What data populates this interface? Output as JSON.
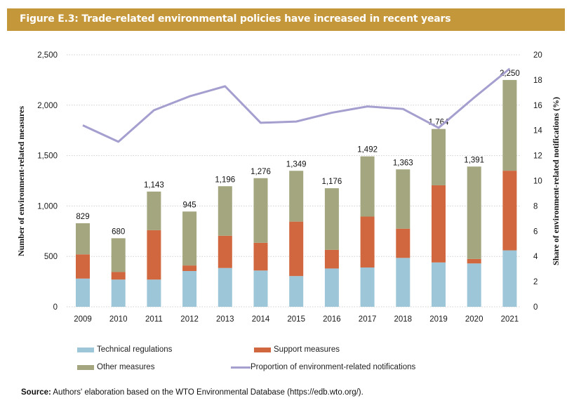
{
  "title": "Figure E.3: Trade-related environmental policies have increased in recent years",
  "source_label": "Source:",
  "source_text": " Authors' elaboration based on the WTO Environmental Database (https://edb.wto.org/).",
  "colors": {
    "technical": "#9dc6d8",
    "support": "#d0673e",
    "other": "#a3a67e",
    "line": "#a49fcf",
    "title_bg": "#c4973a"
  },
  "chart_data": {
    "type": "bar",
    "stacked": true,
    "title": "Figure E.3: Trade-related environmental policies have increased in recent years",
    "xlabel": "",
    "ylabel": "Number of environment-related measures",
    "y2label": "Share of environment-related notifications (%)",
    "ylim": [
      0,
      2500
    ],
    "y2lim": [
      0,
      20
    ],
    "yticks": [
      "0",
      "500",
      "1,000",
      "1,500",
      "2,000",
      "2,500"
    ],
    "y2ticks": [
      "0",
      "2",
      "4",
      "6",
      "8",
      "10",
      "12",
      "14",
      "16",
      "18",
      "20"
    ],
    "grid": true,
    "legend_position": "bottom",
    "categories": [
      "2009",
      "2010",
      "2011",
      "2012",
      "2013",
      "2014",
      "2015",
      "2016",
      "2017",
      "2018",
      "2019",
      "2020",
      "2021"
    ],
    "series": [
      {
        "name": "Technical regulations",
        "type": "bar",
        "values": [
          280,
          270,
          270,
          355,
          385,
          360,
          305,
          380,
          390,
          485,
          440,
          430,
          560
        ]
      },
      {
        "name": "Support measures",
        "type": "bar",
        "values": [
          240,
          75,
          490,
          55,
          320,
          275,
          540,
          185,
          505,
          290,
          765,
          45,
          790
        ]
      },
      {
        "name": "Other measures",
        "type": "bar",
        "values": [
          309,
          335,
          383,
          535,
          491,
          641,
          504,
          611,
          597,
          588,
          559,
          916,
          900
        ]
      },
      {
        "name": "Proportion of environment-related notifications",
        "type": "line",
        "axis": "right",
        "values": [
          14.4,
          13.1,
          15.6,
          16.7,
          17.5,
          14.6,
          14.7,
          15.4,
          15.9,
          15.7,
          14.2,
          16.6,
          18.9
        ]
      }
    ],
    "totals": [
      829,
      680,
      1143,
      945,
      1196,
      1276,
      1349,
      1176,
      1492,
      1363,
      1764,
      1391,
      2250
    ],
    "total_labels": [
      "829",
      "680",
      "1,143",
      "945",
      "1,196",
      "1,276",
      "1,349",
      "1,176",
      "1,492",
      "1,363",
      "1,764",
      "1,391",
      "2,250"
    ]
  },
  "legend": [
    {
      "label": "Technical regulations",
      "kind": "bar",
      "color_key": "technical"
    },
    {
      "label": "Support measures",
      "kind": "bar",
      "color_key": "support"
    },
    {
      "label": "Other measures",
      "kind": "bar",
      "color_key": "other"
    },
    {
      "label": "Proportion of environment-related notifications",
      "kind": "line",
      "color_key": "line"
    }
  ]
}
